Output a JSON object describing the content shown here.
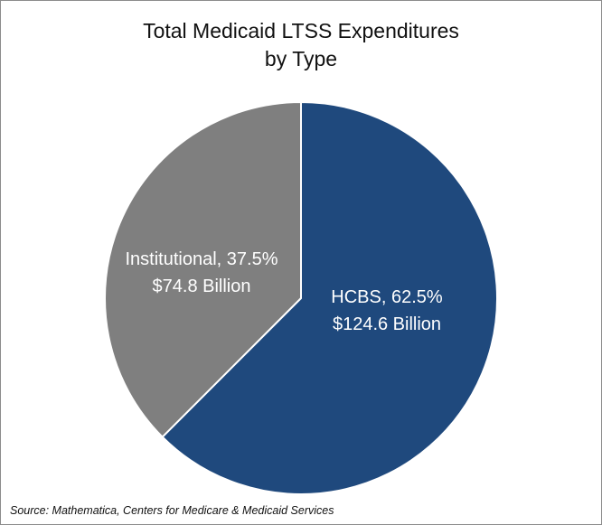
{
  "chart_data": {
    "type": "pie",
    "title": [
      "Total Medicaid LTSS Expenditures",
      "by Type"
    ],
    "slices": [
      {
        "label": "HCBS",
        "percent_label": "62.5%",
        "value_label": "$124.6 Billion",
        "value": 124.6,
        "percent": 62.5,
        "color": "#1f497d"
      },
      {
        "label": "Institutional",
        "percent_label": "37.5%",
        "value_label": "$74.8 Billion",
        "value": 74.8,
        "percent": 37.5,
        "color": "#7f7f7f"
      }
    ],
    "start": "12 o'clock",
    "direction": "clockwise",
    "units": "Billion"
  },
  "source": "Source: Mathematica, Centers for Medicare & Medicaid Services"
}
